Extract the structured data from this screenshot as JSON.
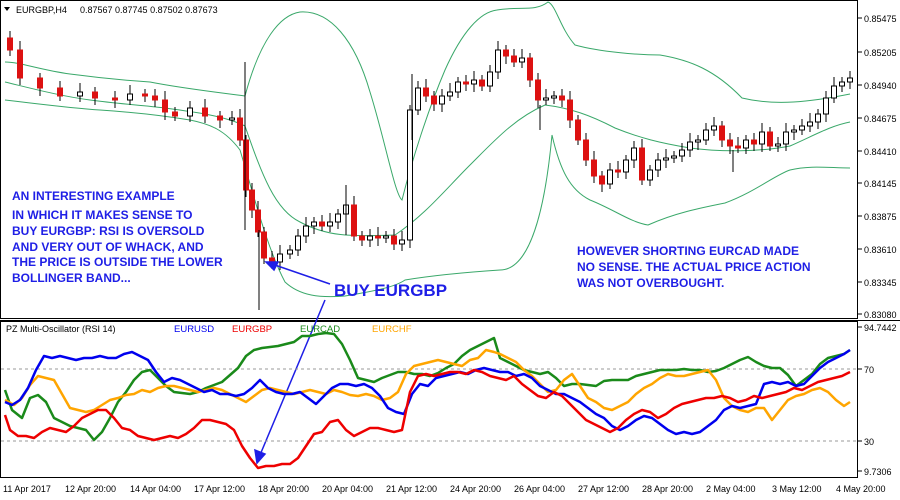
{
  "header": {
    "symbol": "EURGBP,H4",
    "ohlc": "0.87567 0.87745 0.87502 0.87673"
  },
  "price_axis": {
    "ticks": [
      "0.85475",
      "0.85205",
      "0.84940",
      "0.84675",
      "0.84410",
      "0.84145",
      "0.83875",
      "0.83610",
      "0.83345",
      "0.83080"
    ]
  },
  "annotations": {
    "left_note": [
      "AN INTERESTING EXAMPLE",
      "IN WHICH IT MAKES SENSE TO",
      "BUY EURGBP: RSI IS OVERSOLD",
      "AND VERY OUT OF WHACK, AND",
      "THE PRICE IS OUTSIDE THE LOWER",
      "BOLLINGER BAND..."
    ],
    "right_note": [
      "HOWEVER SHORTING EURCAD MADE",
      "NO SENSE. THE ACTUAL PRICE ACTION",
      "WAS NOT OVERBOUGHT."
    ],
    "buy_label": "BUY EURGBP"
  },
  "indicator": {
    "title": "PZ Multi-Oscillator (RSI 14)",
    "legend": [
      {
        "name": "EURUSD",
        "color": "#0000ee"
      },
      {
        "name": "EURGBP",
        "color": "#ee0000"
      },
      {
        "name": "EURCAD",
        "color": "#1a8a1a"
      },
      {
        "name": "EURCHF",
        "color": "#ffa500"
      }
    ],
    "axis_ticks": [
      "94.7442",
      "70",
      "30",
      "9.7306"
    ]
  },
  "time_axis": {
    "labels": [
      "11 Apr 2017",
      "12 Apr 20:00",
      "14 Apr 04:00",
      "17 Apr 12:00",
      "18 Apr 20:00",
      "20 Apr 04:00",
      "21 Apr 12:00",
      "24 Apr 20:00",
      "26 Apr 04:00",
      "27 Apr 12:00",
      "28 Apr 20:00",
      "2 May 04:00",
      "3 May 12:00",
      "4 May 20:00"
    ]
  },
  "colors": {
    "bull": "#ffffff",
    "bear": "#dd1111",
    "band": "#3aa86a",
    "annotation": "#1e1ee6",
    "arrow": "#1e1ee6"
  }
}
